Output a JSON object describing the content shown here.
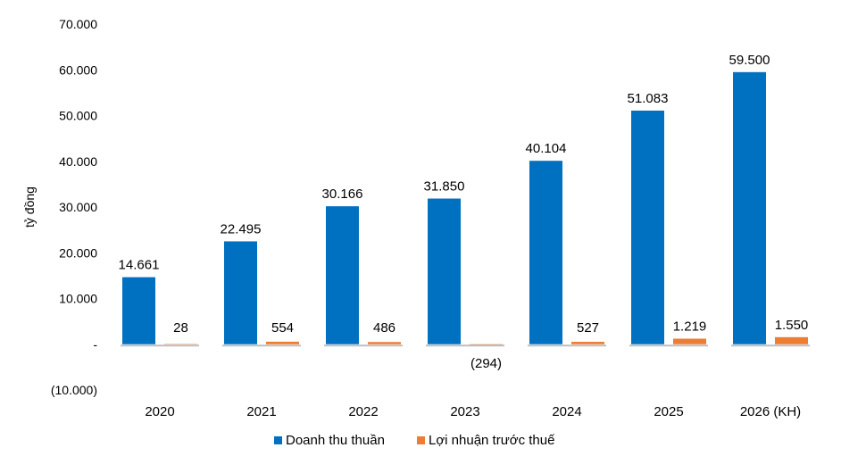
{
  "chart_data": {
    "type": "bar",
    "ylabel": "tỷ đồng",
    "categories": [
      "2020",
      "2021",
      "2022",
      "2023",
      "2024",
      "2025",
      "2026 (KH)"
    ],
    "series": [
      {
        "name": "Doanh thu thuần",
        "color": "#0070C0",
        "values": [
          14661,
          22495,
          30166,
          31850,
          40104,
          51083,
          59500
        ],
        "labels": [
          "14.661",
          "22.495",
          "30.166",
          "31.850",
          "40.104",
          "51.083",
          "59.500"
        ]
      },
      {
        "name": "Lợi nhuận trước thuế",
        "color": "#ED7D31",
        "values": [
          28,
          554,
          486,
          -294,
          527,
          1219,
          1550
        ],
        "labels": [
          "28",
          "554",
          "486",
          "(294)",
          "527",
          "1.219",
          "1.550"
        ]
      }
    ],
    "ylim": [
      -10000,
      70000
    ],
    "yticks": [
      -10000,
      0,
      10000,
      20000,
      30000,
      40000,
      50000,
      60000,
      70000
    ],
    "ytick_labels": [
      "(10.000)",
      "-",
      "10.000",
      "20.000",
      "30.000",
      "40.000",
      "50.000",
      "60.000",
      "70.000"
    ],
    "grid": false,
    "legend": "bottom"
  }
}
